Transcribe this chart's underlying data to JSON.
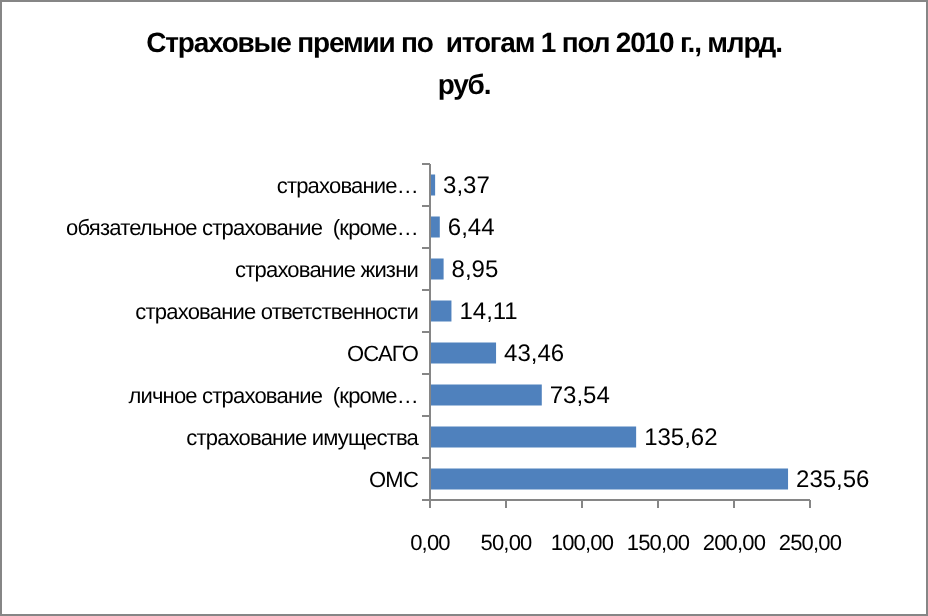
{
  "chart_data": {
    "type": "bar",
    "orientation": "horizontal",
    "title": "Страховые премии по  итогам 1 пол 2010 г., млрд. руб.",
    "categories": [
      "страхование…",
      "обязательное страхование  (кроме…",
      "страхование жизни",
      "страхование ответственности",
      "ОСАГО",
      "личное страхование  (кроме…",
      "страхование имущества",
      "ОМС"
    ],
    "values": [
      3.37,
      6.44,
      8.95,
      14.11,
      43.46,
      73.54,
      135.62,
      235.56
    ],
    "value_labels": [
      "3,37",
      "6,44",
      "8,95",
      "14,11",
      "43,46",
      "73,54",
      "135,62",
      "235,56"
    ],
    "color": "#4f81bd",
    "xlim": [
      0,
      250
    ],
    "xticks": [
      {
        "value": 0,
        "label": "0,00"
      },
      {
        "value": 50,
        "label": "50,00"
      },
      {
        "value": 100,
        "label": "100,00"
      },
      {
        "value": 150,
        "label": "150,00"
      },
      {
        "value": 200,
        "label": "200,00"
      },
      {
        "value": 250,
        "label": "250,00"
      }
    ],
    "grid": false
  }
}
